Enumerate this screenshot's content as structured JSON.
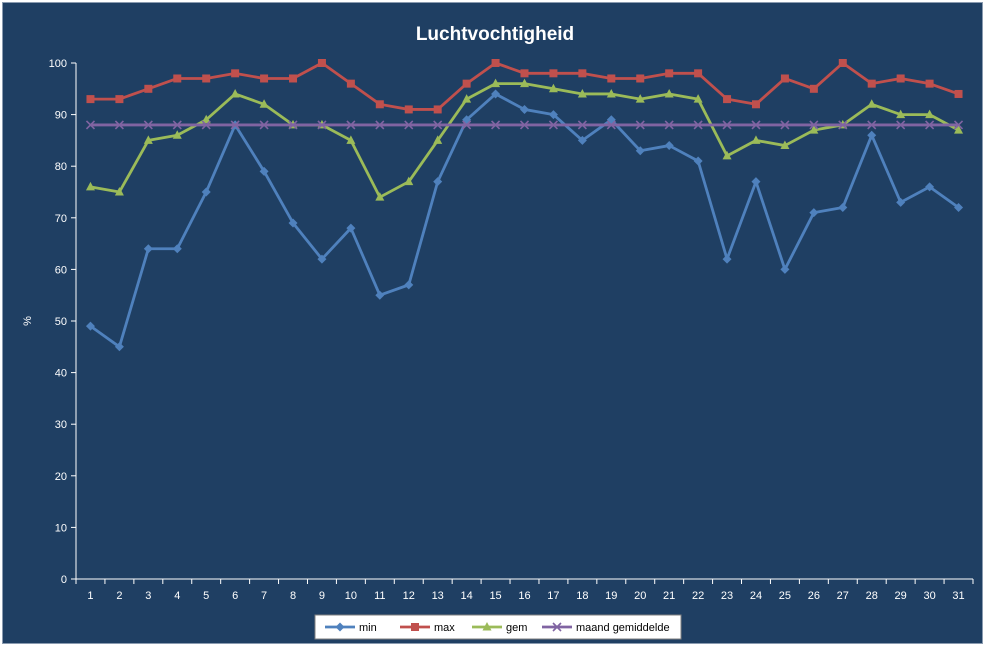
{
  "chart_data": {
    "type": "line",
    "title": "Luchtvochtigheid",
    "xlabel": "",
    "ylabel": "%",
    "ylim": [
      0,
      100
    ],
    "yticks": [
      0,
      10,
      20,
      30,
      40,
      50,
      60,
      70,
      80,
      90,
      100
    ],
    "x": [
      1,
      2,
      3,
      4,
      5,
      6,
      7,
      8,
      9,
      10,
      11,
      12,
      13,
      14,
      15,
      16,
      17,
      18,
      19,
      20,
      21,
      22,
      23,
      24,
      25,
      26,
      27,
      28,
      29,
      30,
      31
    ],
    "grid": false,
    "legend": "bottom",
    "series": [
      {
        "name": "min",
        "color": "#4f81bd",
        "marker": "diamond",
        "values": [
          49,
          45,
          64,
          64,
          75,
          88,
          79,
          69,
          62,
          68,
          55,
          57,
          77,
          89,
          94,
          91,
          90,
          85,
          89,
          83,
          84,
          81,
          62,
          77,
          60,
          71,
          72,
          86,
          73,
          76,
          72
        ]
      },
      {
        "name": "max",
        "color": "#c0504d",
        "marker": "square",
        "values": [
          93,
          93,
          95,
          97,
          97,
          98,
          97,
          97,
          100,
          96,
          92,
          91,
          91,
          96,
          100,
          98,
          98,
          98,
          97,
          97,
          98,
          98,
          93,
          92,
          97,
          95,
          100,
          96,
          97,
          96,
          94
        ]
      },
      {
        "name": "gem",
        "color": "#9bbb59",
        "marker": "triangle",
        "values": [
          76,
          75,
          85,
          86,
          89,
          94,
          92,
          88,
          88,
          85,
          74,
          77,
          85,
          93,
          96,
          96,
          95,
          94,
          94,
          93,
          94,
          93,
          82,
          85,
          84,
          87,
          88,
          92,
          90,
          90,
          87
        ]
      },
      {
        "name": "maand gemiddelde",
        "color": "#8064a2",
        "marker": "x",
        "values": [
          88,
          88,
          88,
          88,
          88,
          88,
          88,
          88,
          88,
          88,
          88,
          88,
          88,
          88,
          88,
          88,
          88,
          88,
          88,
          88,
          88,
          88,
          88,
          88,
          88,
          88,
          88,
          88,
          88,
          88,
          88
        ]
      }
    ]
  }
}
